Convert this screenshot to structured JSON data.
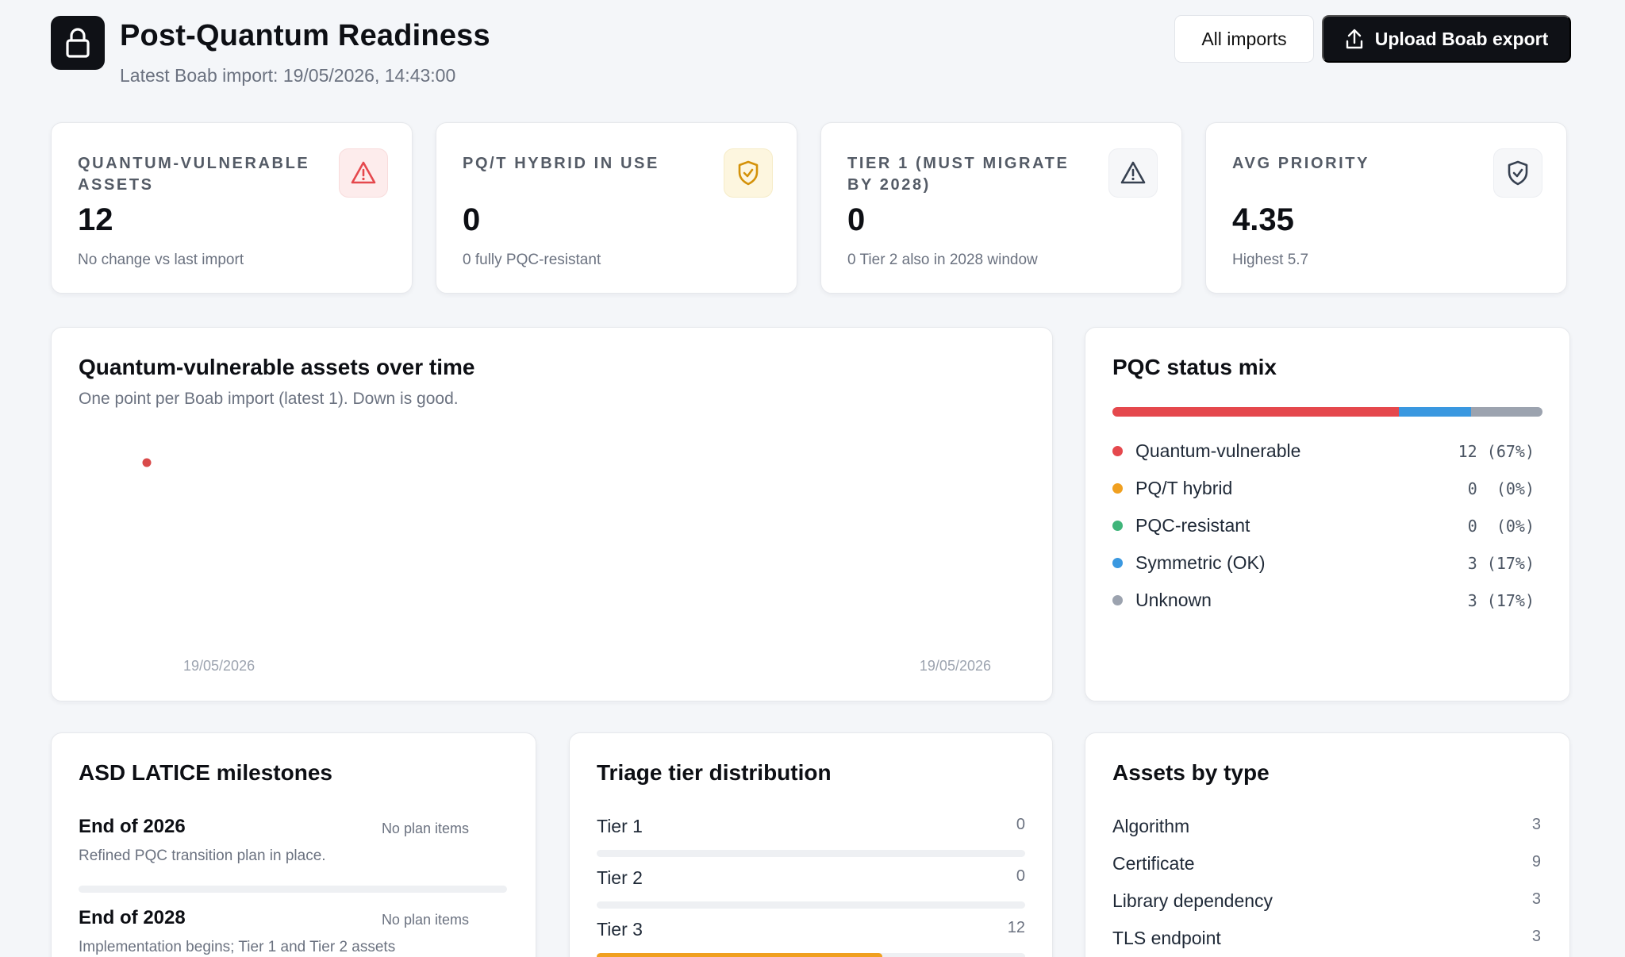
{
  "header": {
    "title": "Post-Quantum Readiness",
    "subtitle": "Latest Boab import: 19/05/2026, 14:43:00",
    "all_imports_label": "All imports",
    "upload_label": "Upload Boab export",
    "logo_icon": "lock-icon",
    "upload_icon": "upload-icon"
  },
  "kpis": [
    {
      "label": "QUANTUM-VULNERABLE ASSETS",
      "value": "12",
      "note": "No change vs last import",
      "icon": "warning-icon",
      "icon_color": "#e5484d",
      "icon_bg": "#fdecec"
    },
    {
      "label": "PQ/T HYBRID IN USE",
      "value": "0",
      "note": "0 fully PQC-resistant",
      "icon": "shield-icon",
      "icon_color": "#d4920a",
      "icon_bg": "#fdf6df"
    },
    {
      "label": "TIER 1 (MUST MIGRATE BY 2028)",
      "value": "0",
      "note": "0 Tier 2 also in 2028 window",
      "icon": "warning-icon",
      "icon_color": "#374151",
      "icon_bg": "#f6f7f9"
    },
    {
      "label": "AVG PRIORITY",
      "value": "4.35",
      "note": "Highest 5.7",
      "icon": "shield-check-icon",
      "icon_color": "#374151",
      "icon_bg": "#f6f7f9"
    }
  ],
  "timeline": {
    "title": "Quantum-vulnerable assets over time",
    "subtitle": "One point per Boab import (latest 1). Down is good.",
    "chart_data": {
      "type": "scatter",
      "x": [
        "19/05/2026"
      ],
      "y": [
        12
      ],
      "tick_labels": [
        "19/05/2026",
        "19/05/2026"
      ],
      "point_color": "#d94a4a"
    }
  },
  "pqc_mix": {
    "title": "PQC status mix",
    "items": [
      {
        "name": "Quantum-vulnerable",
        "count": "12",
        "pct": "(67%)",
        "share": 0.667,
        "color": "#e5484d"
      },
      {
        "name": "PQ/T hybrid",
        "count": "0",
        "pct": "(0%)",
        "share": 0,
        "color": "#f0a020"
      },
      {
        "name": "PQC-resistant",
        "count": "0",
        "pct": "(0%)",
        "share": 0,
        "color": "#3fb57a"
      },
      {
        "name": "Symmetric (OK)",
        "count": "3",
        "pct": "(17%)",
        "share": 0.167,
        "color": "#3a98e0"
      },
      {
        "name": "Unknown",
        "count": "3",
        "pct": "(17%)",
        "share": 0.167,
        "color": "#9ca3af"
      }
    ]
  },
  "milestones": {
    "title": "ASD LATICE milestones",
    "items": [
      {
        "title": "End of 2026",
        "tag": "No plan items",
        "desc": "Refined PQC transition plan in place."
      },
      {
        "title": "End of 2028",
        "tag": "No plan items",
        "desc": "Implementation begins; Tier 1 and Tier 2 assets"
      }
    ]
  },
  "tiers": {
    "title": "Triage tier distribution",
    "items": [
      {
        "label": "Tier 1",
        "count": "0",
        "fraction": 0
      },
      {
        "label": "Tier 2",
        "count": "0",
        "fraction": 0
      },
      {
        "label": "Tier 3",
        "count": "12",
        "fraction": 0.667
      }
    ]
  },
  "asset_types": {
    "title": "Assets by type",
    "items": [
      {
        "label": "Algorithm",
        "count": "3"
      },
      {
        "label": "Certificate",
        "count": "9"
      },
      {
        "label": "Library dependency",
        "count": "3"
      },
      {
        "label": "TLS endpoint",
        "count": "3"
      }
    ]
  }
}
